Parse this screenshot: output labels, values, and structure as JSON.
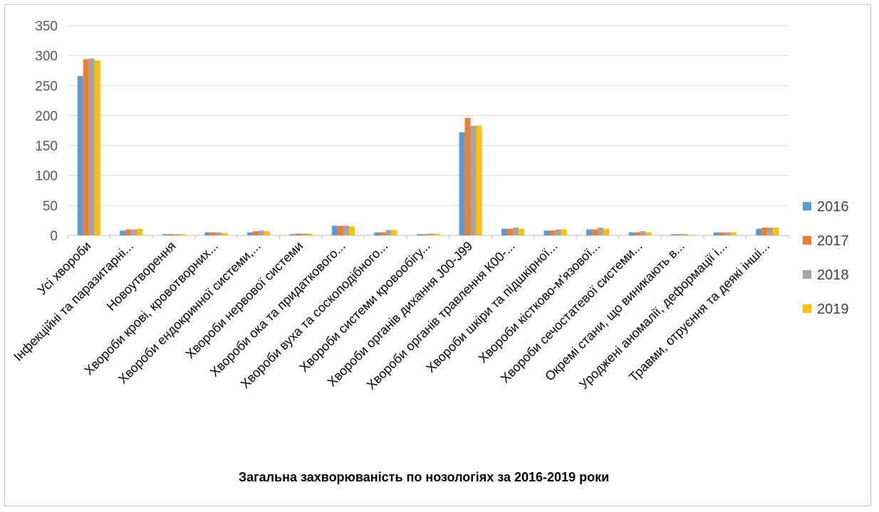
{
  "chart_data": {
    "type": "bar",
    "title": "Загальна захворюваність по нозологіях за 2016-2019 роки",
    "xlabel": "",
    "ylabel": "",
    "ylim": [
      0,
      350
    ],
    "yticks": [
      0,
      50,
      100,
      150,
      200,
      250,
      300,
      350
    ],
    "grid": true,
    "legend_position": "right",
    "categories": [
      "Усі хвороби",
      "Інфекційні та паразитарні...",
      "Новоутворення",
      "Хвороби крові, кровотворних...",
      "Хвороби ендокринної системи,...",
      "Хвороби нервової системи",
      "Хвороби ока та придаткового...",
      "Хвороби вуха та соскоподібного...",
      "Хвороби системи кровообігу...",
      "Хвороби органів дихання    J00-J99",
      "Хвороби органів травлення К00-...",
      "Хвороби шкіри та підшкірної...",
      "Хвороби кістково-м'язової...",
      "Хвороби сечостатевої системи...",
      "Окремі стани, що виникають в...",
      "Уроджені аномалії, деформації і...",
      "Травми, отруєння та деякі інші..."
    ],
    "series": [
      {
        "name": "2016",
        "color": "#5b9bd5",
        "values": [
          266,
          8,
          2,
          5,
          5,
          2,
          16,
          5,
          2,
          172,
          11,
          8,
          10,
          5,
          2,
          5,
          11
        ]
      },
      {
        "name": "2017",
        "color": "#ed7d31",
        "values": [
          294,
          10,
          2,
          5,
          7,
          3,
          16,
          5,
          2,
          196,
          11,
          8,
          10,
          5,
          2,
          5,
          13
        ]
      },
      {
        "name": "2018",
        "color": "#a5a5a5",
        "values": [
          295,
          10,
          2,
          5,
          8,
          3,
          16,
          9,
          3,
          183,
          13,
          10,
          13,
          7,
          2,
          5,
          13
        ]
      },
      {
        "name": "2019",
        "color": "#ffc000",
        "values": [
          292,
          11,
          2,
          4,
          7,
          3,
          15,
          9,
          3,
          183,
          11,
          10,
          11,
          5,
          1,
          5,
          13
        ]
      }
    ]
  }
}
